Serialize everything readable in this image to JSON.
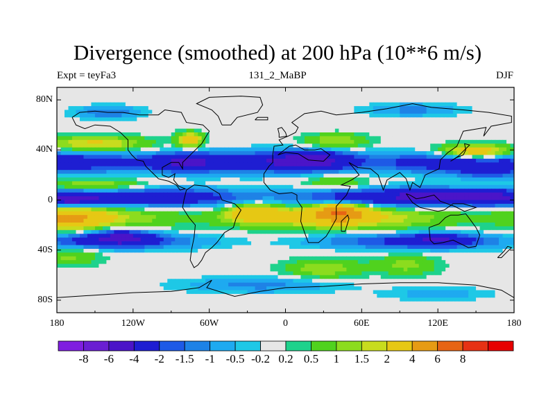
{
  "title": "Divergence (smoothed) at 200 hPa (10**6 m/s)",
  "left_label": "Expt = teyFa3",
  "center_label": "131_2_MaBP",
  "right_label": "DJF",
  "colors": {
    "frame": "#000000",
    "coast": "#000000",
    "background_field": "#e6e6e6",
    "palette": [
      "#7f1ee0",
      "#6a1ed2",
      "#4b14c8",
      "#1e1ed2",
      "#1e5ae6",
      "#1e82e6",
      "#1eaaf0",
      "#1ec8e6",
      "#e6e6e6",
      "#1ed28c",
      "#50d21e",
      "#8cdc1e",
      "#c8dc1e",
      "#e6c814",
      "#e69b14",
      "#e66414",
      "#e63214",
      "#e60000"
    ]
  },
  "chart_data": {
    "type": "heatmap",
    "title": "Divergence (smoothed) at 200 hPa (10**6 m/s)",
    "field": "divergence, 200 hPa, DJF",
    "x_range": [
      -180,
      180
    ],
    "y_range": [
      -90,
      90
    ],
    "x_ticks": [
      {
        "value": -180,
        "label": "180"
      },
      {
        "value": -120,
        "label": "120W"
      },
      {
        "value": -60,
        "label": "60W"
      },
      {
        "value": 0,
        "label": "0"
      },
      {
        "value": 60,
        "label": "60E"
      },
      {
        "value": 120,
        "label": "120E"
      },
      {
        "value": 180,
        "label": "180"
      }
    ],
    "y_ticks": [
      {
        "value": 80,
        "label": "80N"
      },
      {
        "value": 40,
        "label": "40N"
      },
      {
        "value": 0,
        "label": "0"
      },
      {
        "value": -40,
        "label": "40S"
      },
      {
        "value": -80,
        "label": "80S"
      }
    ],
    "colorbar": {
      "levels": [
        {
          "value": -8,
          "label": "-8"
        },
        {
          "value": -6,
          "label": "-6"
        },
        {
          "value": -4,
          "label": "-4"
        },
        {
          "value": -2,
          "label": "-2"
        },
        {
          "value": -1.5,
          "label": "-1.5"
        },
        {
          "value": -1,
          "label": "-1"
        },
        {
          "value": -0.5,
          "label": "-0.5"
        },
        {
          "value": -0.2,
          "label": "-0.2"
        },
        {
          "value": 0.2,
          "label": "0.2"
        },
        {
          "value": 0.5,
          "label": "0.5"
        },
        {
          "value": 1,
          "label": "1"
        },
        {
          "value": 1.5,
          "label": "1.5"
        },
        {
          "value": 2,
          "label": "2"
        },
        {
          "value": 4,
          "label": "4"
        },
        {
          "value": 6,
          "label": "6"
        },
        {
          "value": 8,
          "label": "8"
        }
      ]
    },
    "features": [
      {
        "name": "equatorial convergence band",
        "lon": [
          -180,
          180
        ],
        "lat": [
          -5,
          8
        ],
        "level": "-2 to -4"
      },
      {
        "name": "tropical divergence belt south of equator",
        "lon": [
          -180,
          180
        ],
        "lat": [
          -25,
          -5
        ],
        "level": "1 to 4"
      },
      {
        "name": "indian ocean divergence maximum",
        "lon": 42,
        "lat": -10,
        "level": "4 to 6"
      },
      {
        "name": "northern subtropical convergence",
        "lon": [
          -180,
          180
        ],
        "lat": [
          20,
          40
        ],
        "level": "-1 to -4"
      },
      {
        "name": "north pacific divergence",
        "lon": [
          120,
          180
        ],
        "lat": [
          30,
          45
        ],
        "level": "1.5 to 4"
      },
      {
        "name": "southern midlatitude divergence patches",
        "lon": [
          -180,
          180
        ],
        "lat": [
          -70,
          -30
        ],
        "level": "0.5 to 1"
      }
    ]
  }
}
